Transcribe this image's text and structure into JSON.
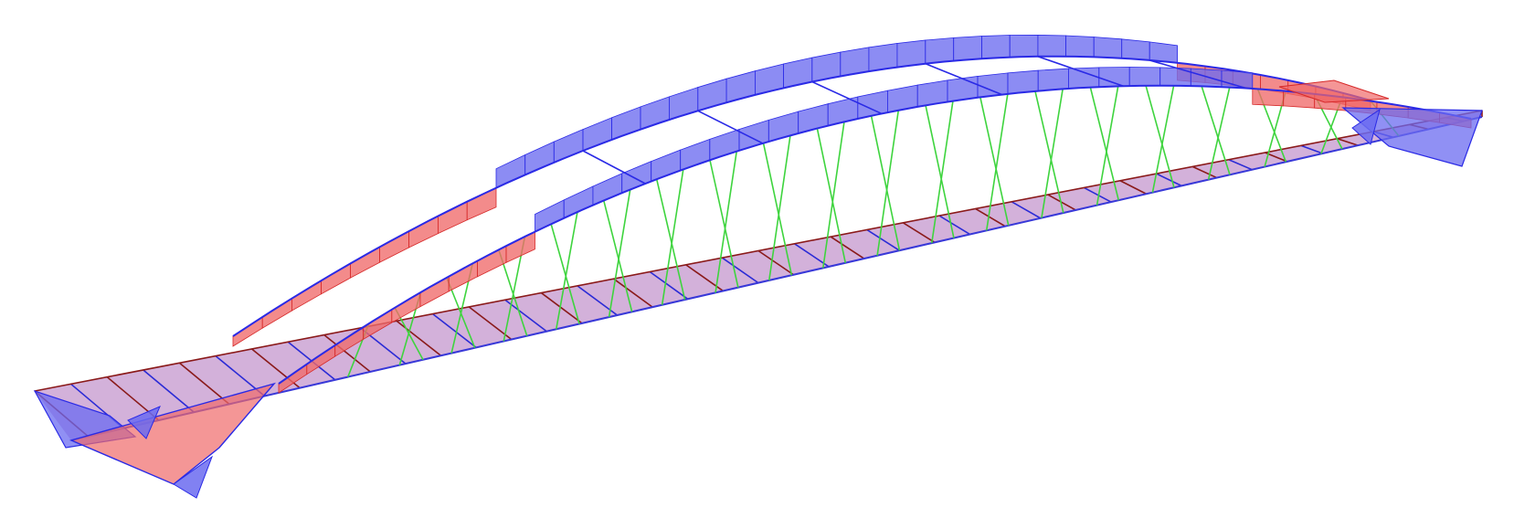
{
  "diagram": {
    "type": "arch-bridge-force-diagram",
    "colors": {
      "background": "#ffffff",
      "negative_fill": "#6b6bf0",
      "negative_line": "#2a2ae6",
      "positive_fill": "#f06a6a",
      "positive_line": "#d62828",
      "deck_fill": "#c9a0d2",
      "deck_edge": "#3838d8",
      "deck_beam_red": "#8a1a1a",
      "deck_beam_blue": "#2b2bd6",
      "hanger": "#3ed43e"
    },
    "hanger_count": 38,
    "deck_bay_count": 40
  }
}
